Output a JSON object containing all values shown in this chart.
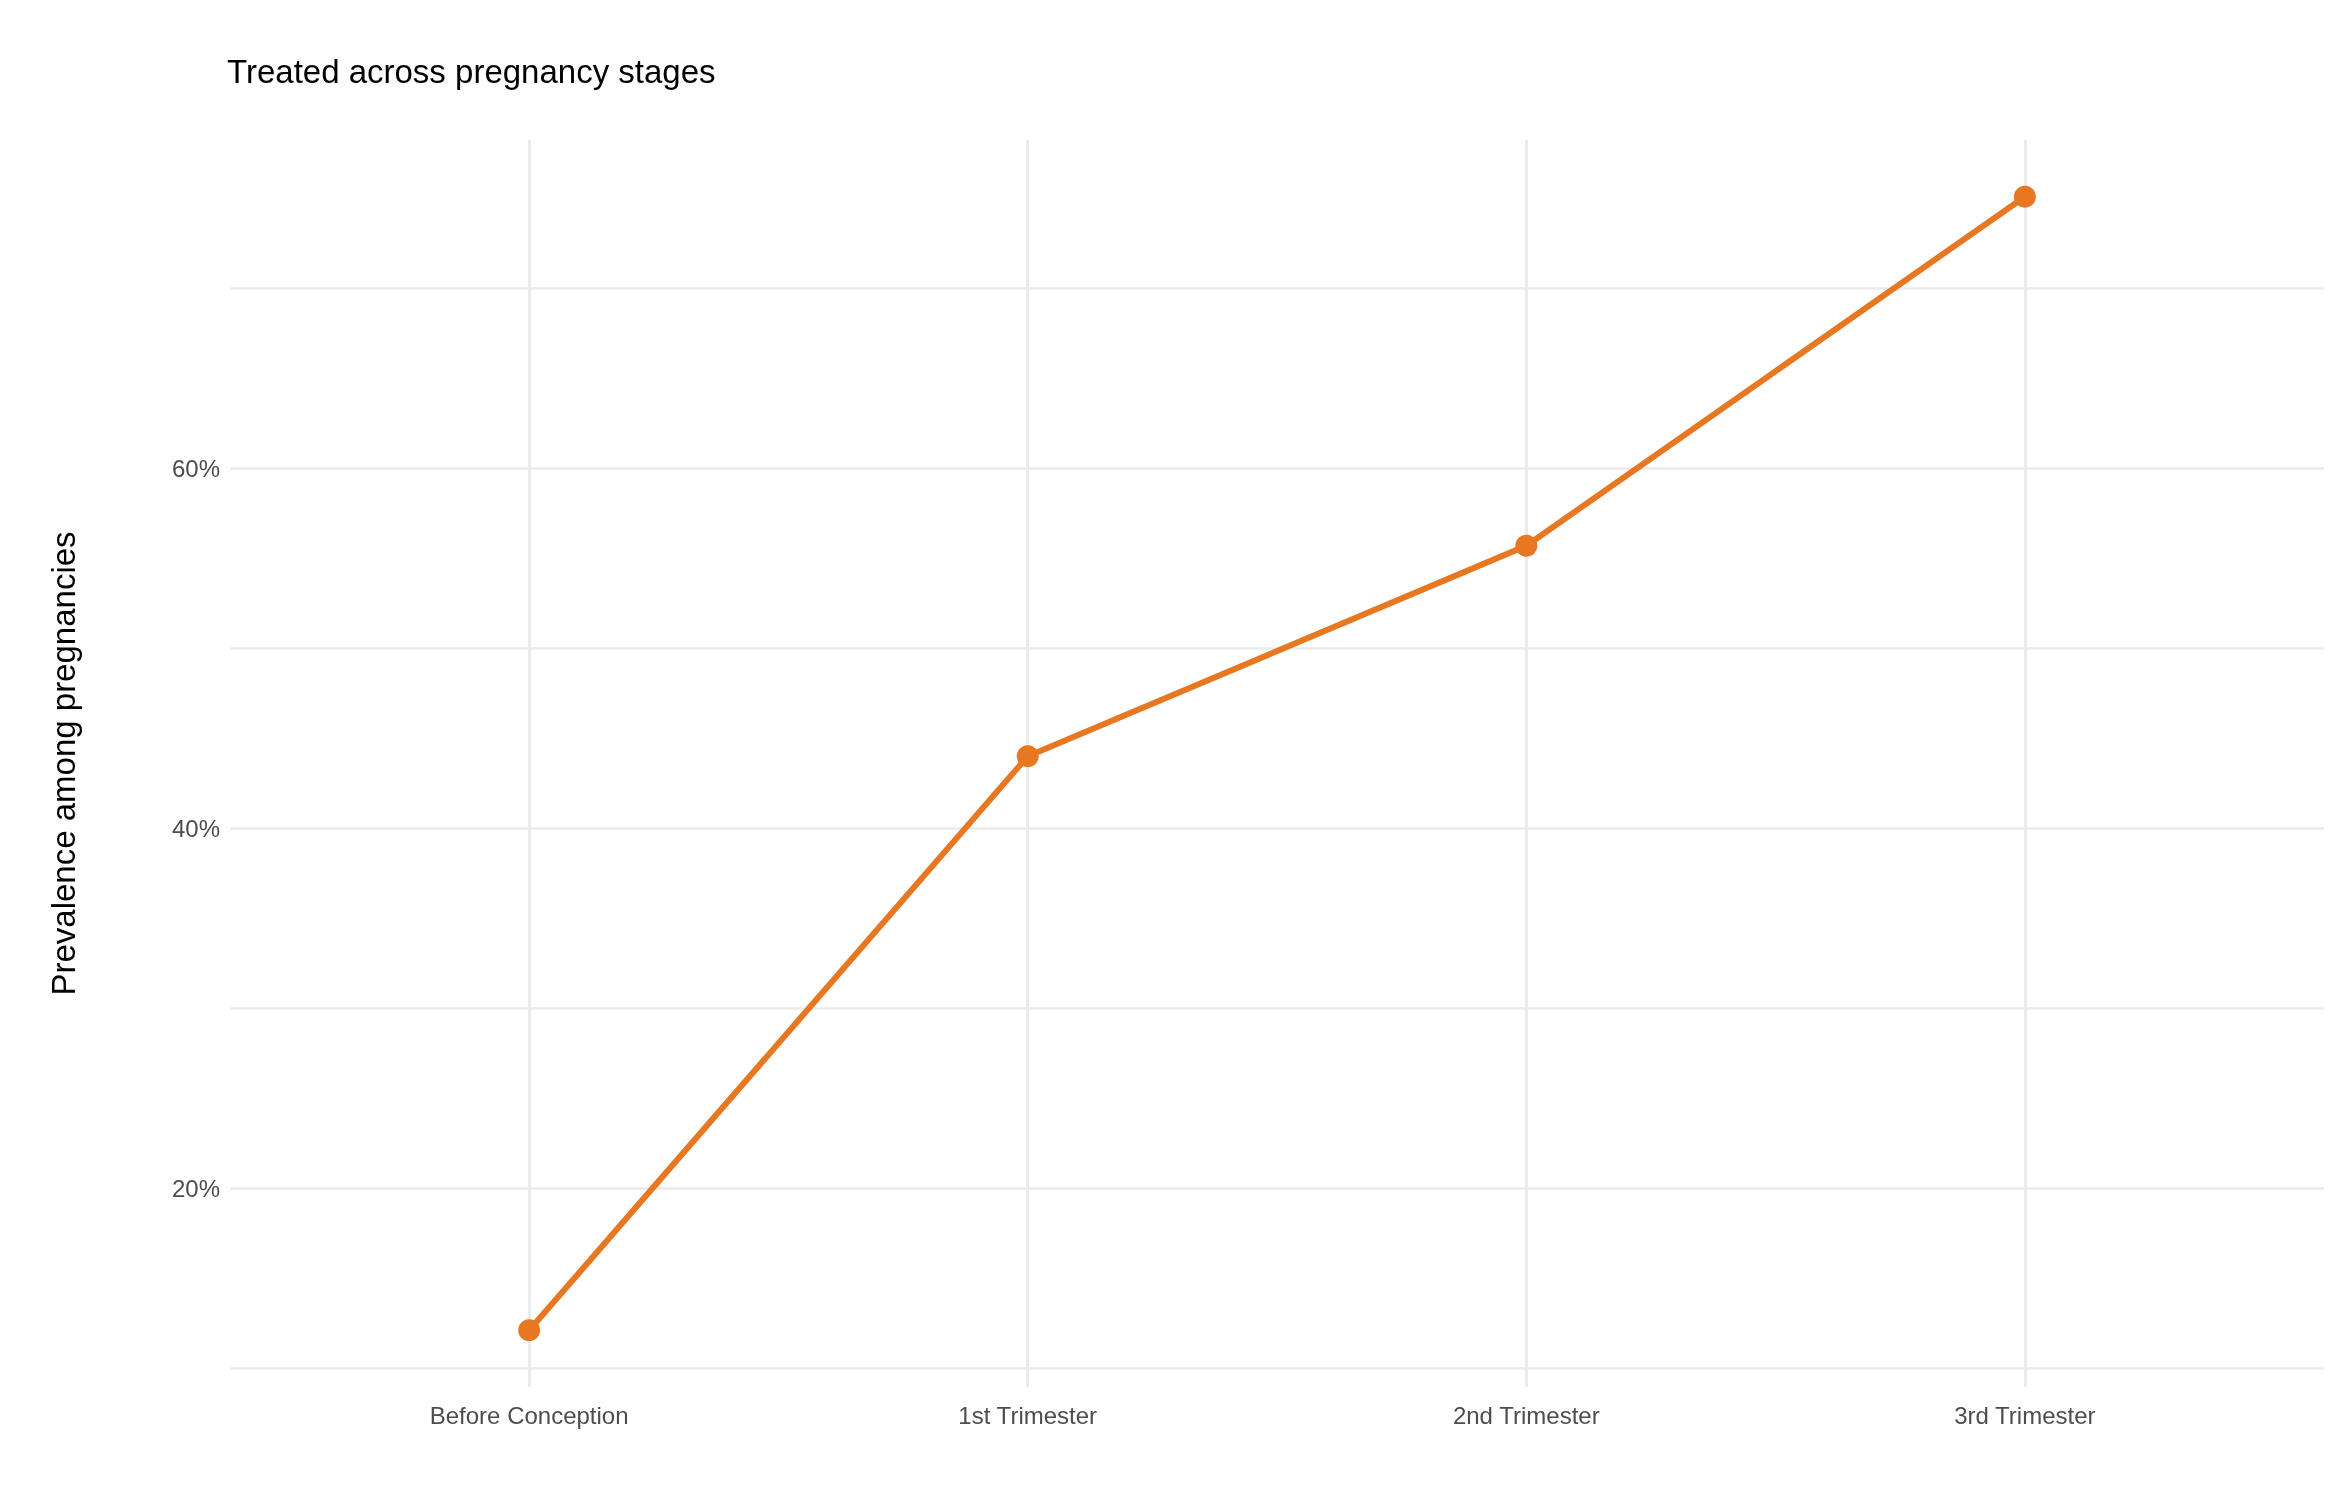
{
  "chart_data": {
    "type": "line",
    "title": "Treated across pregnancy stages",
    "ylabel": "Prevalence among pregnancies",
    "categories": [
      "Before Conception",
      "1st Trimester",
      "2nd Trimester",
      "3rd Trimester"
    ],
    "series": [
      {
        "color": "#e87722",
        "values": [
          12.1,
          44.0,
          55.7,
          75.1
        ]
      }
    ],
    "ylim": [
      8.95,
      78.25
    ],
    "yticks": [
      {
        "value": 10,
        "label": null
      },
      {
        "value": 20,
        "label": "20%"
      },
      {
        "value": 30,
        "label": null
      },
      {
        "value": 40,
        "label": "40%"
      },
      {
        "value": 50,
        "label": null
      },
      {
        "value": 60,
        "label": "60%"
      },
      {
        "value": 70,
        "label": null
      }
    ],
    "grid": true,
    "marker": "circle",
    "line_style": "solid"
  }
}
